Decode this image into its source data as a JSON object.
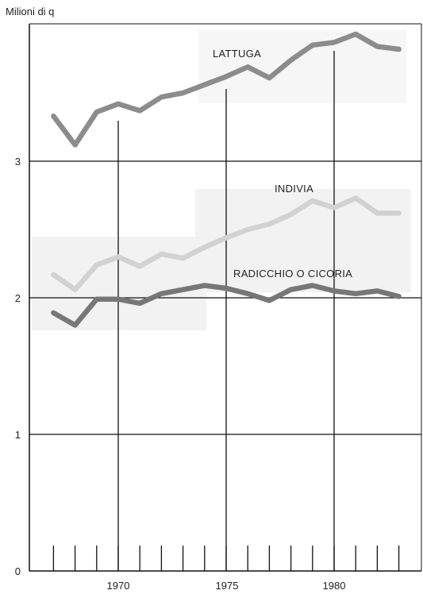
{
  "chart_data": {
    "type": "line",
    "title": "",
    "ylabel": "Milioni di q",
    "xlabel": "",
    "ylim": [
      0,
      4
    ],
    "xlim": [
      1966.2,
      1984.3
    ],
    "grid": true,
    "x": [
      1967,
      1968,
      1969,
      1970,
      1971,
      1972,
      1973,
      1974,
      1975,
      1976,
      1977,
      1978,
      1979,
      1980,
      1981,
      1982,
      1983
    ],
    "x_tick_labels": [
      "1970",
      "1975",
      "1980"
    ],
    "y_tick_labels": [
      "0",
      "1",
      "2",
      "3"
    ],
    "series": [
      {
        "name": "LATTUGA",
        "color": "#8c8c8c",
        "values": [
          3.33,
          3.12,
          3.36,
          3.42,
          3.37,
          3.47,
          3.5,
          3.56,
          3.62,
          3.69,
          3.61,
          3.74,
          3.85,
          3.87,
          3.93,
          3.84,
          3.82
        ]
      },
      {
        "name": "INDIVIA",
        "color": "#d2d2d2",
        "values": [
          2.17,
          2.06,
          2.24,
          2.3,
          2.23,
          2.32,
          2.29,
          2.37,
          2.44,
          2.5,
          2.54,
          2.61,
          2.71,
          2.66,
          2.73,
          2.62,
          2.62
        ]
      },
      {
        "name": "RADICCHIO O CICORIA",
        "color": "#777777",
        "values": [
          1.89,
          1.8,
          1.99,
          1.99,
          1.96,
          2.03,
          2.06,
          2.09,
          2.07,
          2.03,
          1.98,
          2.06,
          2.09,
          2.05,
          2.03,
          2.05,
          2.01
        ]
      }
    ]
  }
}
